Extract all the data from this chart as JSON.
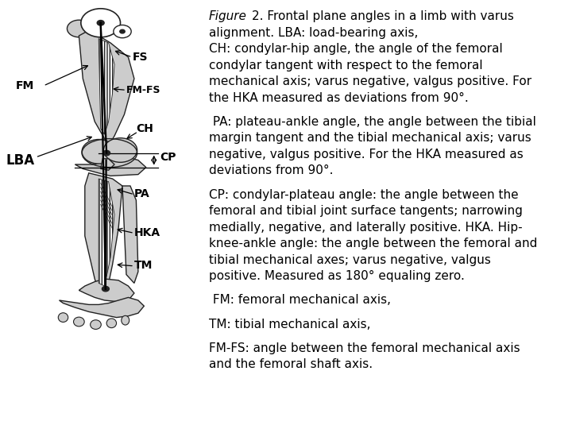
{
  "bg_color": "#ffffff",
  "text_color": "#000000",
  "title_italic": "Figure",
  "title_rest": " 2. Frontal plane angles in a limb with varus\nalignment. LBA: load-bearing axis,",
  "paragraph1": "CH: condylar-hip angle, the angle of the femoral\ncondylar tangent with respect to the femoral\nmechanical axis; varus negative, valgus positive. For\nthe HKA measured as deviations from 90°.",
  "paragraph2": " PA: plateau-ankle angle, the angle between the tibial\nmargin tangent and the tibial mechanical axis; varus\nnegative, valgus positive. For the HKA measured as\ndeviations from 90°.",
  "paragraph3": "CP: condylar-plateau angle: the angle between the\nfemoral and tibial joint surface tangents; narrowing\nmedially, negative, and laterally positive. HKA. Hip-\nknee-ankle angle: the angle between the femoral and\ntibial mechanical axes; varus negative, valgus\npositive. Measured as 180° equaling zero.",
  "paragraph4": " FM: femoral mechanical axis,",
  "paragraph5": "TM: tibial mechanical axis,",
  "paragraph6": "FM-FS: angle between the femoral mechanical axis\nand the femoral shaft axis.",
  "font_size": 11,
  "title_font_size": 11
}
